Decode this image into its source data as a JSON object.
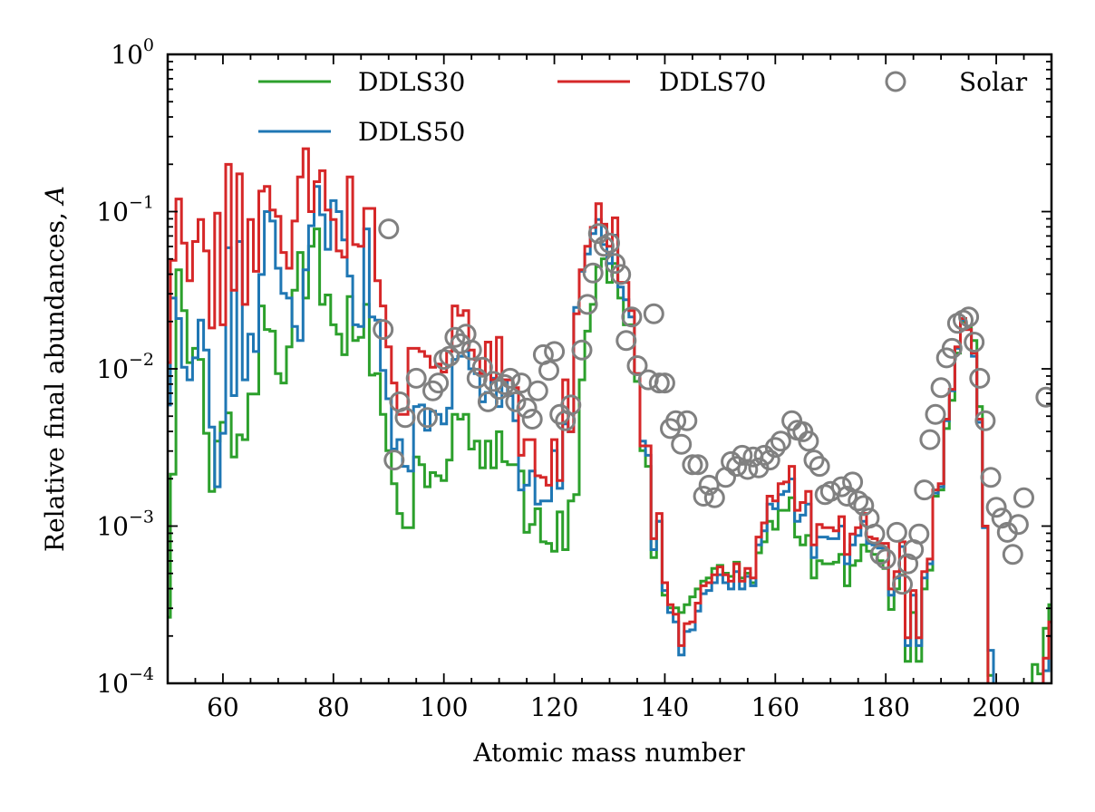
{
  "chart_data": {
    "type": "line",
    "style": "step",
    "xlabel": "Atomic mass number",
    "ylabel": "Relative final abundances, ",
    "ylabel_symbol": "A",
    "xlim": [
      50,
      210
    ],
    "ylim": [
      0.0001,
      1
    ],
    "yscale": "log",
    "value_encoding": "log10 of relative final abundance per mass number; -5 means below plotted range",
    "xticks": [
      60,
      80,
      100,
      120,
      140,
      160,
      180,
      200
    ],
    "xticklabels": [
      "60",
      "80",
      "100",
      "120",
      "140",
      "160",
      "180",
      "200"
    ],
    "ytick_base": "10",
    "ytick_exponents": [
      "0",
      "−1",
      "−2",
      "−3",
      "−4"
    ],
    "ytick_values": [
      1,
      0.1,
      0.01,
      0.001,
      0.0001
    ],
    "grid": false,
    "legend_placement": "top",
    "x_start": 50,
    "series": [
      {
        "name": "DDLS30",
        "color": "#2ca02c",
        "kind": "step",
        "log10_values": [
          -3.58,
          -2.67,
          -1.37,
          -1.63,
          -1.96,
          -1.87,
          -1.94,
          -2.41,
          -2.78,
          -2.46,
          -2.34,
          -2.28,
          -2.56,
          -2.42,
          -2.45,
          -2.16,
          -2.16,
          -1.6,
          -1.75,
          -1.76,
          -2.03,
          -2.09,
          -1.86,
          -1.5,
          -1.26,
          -1.55,
          -1.22,
          -1.11,
          -1.59,
          -1.53,
          -1.72,
          -1.78,
          -1.91,
          -1.54,
          -1.82,
          -1.8,
          -1.59,
          -2.04,
          -2.03,
          -2.29,
          -2.52,
          -2.73,
          -2.92,
          -3.01,
          -3.01,
          -2.56,
          -2.61,
          -2.75,
          -2.66,
          -2.68,
          -2.71,
          -2.58,
          -2.29,
          -2.32,
          -2.29,
          -2.51,
          -2.46,
          -2.63,
          -2.46,
          -2.63,
          -2.4,
          -2.59,
          -2.61,
          -2.61,
          -2.65,
          -3.04,
          -2.99,
          -2.89,
          -3.1,
          -3.11,
          -3.16,
          -2.91,
          -3.15,
          -2.84,
          -2.8,
          -2.07,
          -1.76,
          -1.59,
          -1.35,
          -1.3,
          -1.45,
          -1.33,
          -1.55,
          -1.72,
          -1.72,
          -2.08,
          -2.52,
          -2.62,
          -3.2,
          -2.97,
          -3.44,
          -3.52,
          -3.52,
          -3.55,
          -3.5,
          -3.45,
          -3.4,
          -3.35,
          -3.33,
          -3.27,
          -3.25,
          -3.3,
          -3.32,
          -3.23,
          -3.33,
          -3.3,
          -3.36,
          -3.17,
          -3.1,
          -2.97,
          -3.02,
          -2.9,
          -2.9,
          -2.82,
          -3.07,
          -3.12,
          -3.06,
          -3.33,
          -3.22,
          -3.24,
          -3.24,
          -3.23,
          -3.18,
          -3.38,
          -3.25,
          -3.22,
          -3.12,
          -3.16,
          -3.18,
          -3.22,
          -3.27,
          -3.53,
          -3.4,
          -3.31,
          -3.86,
          -3.55,
          -3.86,
          -3.4,
          -3.28,
          -2.81,
          -2.77,
          -2.38,
          -2.2,
          -1.9,
          -1.7,
          -1.74,
          -1.82,
          -2.24,
          -3.0,
          -3.95,
          -5,
          -5,
          -5,
          -5,
          -5,
          -5,
          -5,
          -3.88,
          -3.94,
          -3.65,
          -3.5
        ]
      },
      {
        "name": "DDLS50",
        "color": "#1f77b4",
        "kind": "step",
        "log10_values": [
          -2.23,
          -1.55,
          -1.68,
          -1.99,
          -2.07,
          -1.93,
          -1.69,
          -1.88,
          -2.37,
          -2.75,
          -2.41,
          -1.23,
          -2.17,
          -1.19,
          -2.07,
          -1.78,
          -1.89,
          -1.4,
          -1.0,
          -1.06,
          -1.36,
          -1.52,
          -1.55,
          -1.73,
          -1.82,
          -1.37,
          -1.09,
          -0.84,
          -1.02,
          -1.24,
          -0.93,
          -1.0,
          -1.18,
          -1.41,
          -1.72,
          -1.73,
          -1.11,
          -1.67,
          -1.69,
          -2.01,
          -2.19,
          -2.51,
          -2.45,
          -2.62,
          -2.65,
          -2.24,
          -2.23,
          -2.39,
          -2.27,
          -2.29,
          -2.35,
          -2.25,
          -1.94,
          -1.92,
          -1.89,
          -2.0,
          -2.03,
          -2.21,
          -2.15,
          -2.06,
          -2.24,
          -2.07,
          -2.17,
          -2.33,
          -2.77,
          -2.74,
          -2.65,
          -2.86,
          -2.84,
          -2.84,
          -2.52,
          -2.76,
          -2.35,
          -2.4,
          -1.61,
          -1.38,
          -1.27,
          -1.14,
          -1.05,
          -1.21,
          -1.33,
          -1.15,
          -1.48,
          -1.56,
          -1.67,
          -2.03,
          -2.46,
          -2.55,
          -3.15,
          -2.97,
          -3.41,
          -3.55,
          -3.61,
          -3.82,
          -3.67,
          -3.66,
          -3.54,
          -3.43,
          -3.41,
          -3.36,
          -3.31,
          -3.36,
          -3.4,
          -3.29,
          -3.4,
          -3.32,
          -3.38,
          -3.12,
          -3.03,
          -2.86,
          -2.89,
          -2.8,
          -2.78,
          -2.7,
          -2.97,
          -2.93,
          -2.86,
          -3.2,
          -3.07,
          -3.07,
          -3.08,
          -3.08,
          -3.0,
          -3.24,
          -3.12,
          -3.06,
          -2.97,
          -3.11,
          -3.12,
          -3.14,
          -3.14,
          -3.44,
          -3.33,
          -3.13,
          -3.76,
          -3.44,
          -3.76,
          -3.33,
          -3.24,
          -2.79,
          -2.75,
          -2.33,
          -2.14,
          -1.87,
          -1.69,
          -1.75,
          -1.92,
          -2.34,
          -3.01,
          -3.79,
          -5,
          -5,
          -5,
          -5,
          -5,
          -5,
          -5,
          -5,
          -5,
          -3.92,
          -3.7
        ]
      },
      {
        "name": "DDLS70",
        "color": "#d62728",
        "kind": "step",
        "log10_values": [
          -1.96,
          -1.31,
          -0.92,
          -1.2,
          -1.44,
          -1.19,
          -1.05,
          -1.25,
          -1.74,
          -1.01,
          -1.72,
          -0.7,
          -1.5,
          -0.76,
          -1.59,
          -1.05,
          -1.38,
          -0.87,
          -0.84,
          -0.99,
          -1.03,
          -1.26,
          -1.36,
          -1.06,
          -0.78,
          -0.6,
          -1.0,
          -0.81,
          -0.74,
          -0.99,
          -1.05,
          -1.25,
          -1.29,
          -0.78,
          -1.21,
          -1.22,
          -0.98,
          -0.98,
          -1.44,
          -1.6,
          -1.86,
          -2.09,
          -2.29,
          -2.29,
          -1.87,
          -1.87,
          -1.89,
          -1.92,
          -1.99,
          -1.97,
          -2.02,
          -1.89,
          -1.6,
          -1.66,
          -1.63,
          -1.88,
          -1.94,
          -2.03,
          -1.83,
          -2.07,
          -1.8,
          -2.07,
          -2.07,
          -2.12,
          -2.55,
          -2.45,
          -2.45,
          -2.68,
          -2.69,
          -2.74,
          -2.45,
          -2.71,
          -2.07,
          -2.4,
          -1.65,
          -1.37,
          -1.22,
          -1.1,
          -0.95,
          -1.08,
          -1.22,
          -1.04,
          -1.45,
          -1.45,
          -1.63,
          -2.03,
          -2.49,
          -2.49,
          -3.08,
          -2.92,
          -3.36,
          -3.5,
          -3.56,
          -3.76,
          -3.62,
          -3.61,
          -3.49,
          -3.38,
          -3.36,
          -3.31,
          -3.26,
          -3.31,
          -3.35,
          -3.24,
          -3.35,
          -3.27,
          -3.33,
          -3.07,
          -2.98,
          -2.81,
          -2.84,
          -2.73,
          -2.72,
          -2.62,
          -2.9,
          -2.85,
          -2.78,
          -3.12,
          -2.99,
          -3.01,
          -3.01,
          -3.03,
          -2.94,
          -3.18,
          -3.05,
          -3.01,
          -2.92,
          -3.07,
          -3.08,
          -3.11,
          -3.11,
          -3.4,
          -3.29,
          -3.1,
          -3.71,
          -3.41,
          -3.71,
          -3.29,
          -3.21,
          -2.77,
          -2.73,
          -2.32,
          -2.13,
          -1.86,
          -1.68,
          -1.75,
          -1.9,
          -2.32,
          -3.0,
          -5,
          -5,
          -5,
          -5,
          -5,
          -5,
          -5,
          -5,
          -5,
          -5,
          -3.84,
          -3.61
        ]
      },
      {
        "name": "Solar",
        "color": "#808080",
        "kind": "scatter",
        "points": [
          [
            89,
            -1.75
          ],
          [
            90,
            -1.11
          ],
          [
            91,
            -2.58
          ],
          [
            92,
            -2.21
          ],
          [
            93,
            -2.31
          ],
          [
            95,
            -2.06
          ],
          [
            97,
            -2.31
          ],
          [
            98,
            -2.14
          ],
          [
            99,
            -2.09
          ],
          [
            100,
            -1.94
          ],
          [
            101,
            -1.92
          ],
          [
            102,
            -1.8
          ],
          [
            103,
            -1.84
          ],
          [
            104,
            -1.78
          ],
          [
            105,
            -1.88
          ],
          [
            106,
            -2.06
          ],
          [
            107,
            -1.99
          ],
          [
            108,
            -2.21
          ],
          [
            109,
            -2.08
          ],
          [
            110,
            -2.13
          ],
          [
            111,
            -2.1
          ],
          [
            112,
            -2.06
          ],
          [
            113,
            -2.21
          ],
          [
            114,
            -2.09
          ],
          [
            115,
            -2.25
          ],
          [
            116,
            -2.32
          ],
          [
            117,
            -2.14
          ],
          [
            118,
            -1.91
          ],
          [
            119,
            -2.01
          ],
          [
            120,
            -1.89
          ],
          [
            121,
            -2.29
          ],
          [
            122,
            -2.33
          ],
          [
            123,
            -2.23
          ],
          [
            125,
            -1.88
          ],
          [
            126,
            -1.59
          ],
          [
            127,
            -1.39
          ],
          [
            128,
            -1.14
          ],
          [
            129,
            -1.22
          ],
          [
            130,
            -1.2
          ],
          [
            131,
            -1.33
          ],
          [
            132,
            -1.4
          ],
          [
            133,
            -1.82
          ],
          [
            134,
            -1.67
          ],
          [
            135,
            -1.98
          ],
          [
            137,
            -2.07
          ],
          [
            138,
            -1.65
          ],
          [
            139,
            -2.09
          ],
          [
            140,
            -2.09
          ],
          [
            141,
            -2.38
          ],
          [
            142,
            -2.33
          ],
          [
            143,
            -2.48
          ],
          [
            144,
            -2.33
          ],
          [
            145,
            -2.61
          ],
          [
            146,
            -2.61
          ],
          [
            147,
            -2.81
          ],
          [
            148,
            -2.74
          ],
          [
            149,
            -2.82
          ],
          [
            151,
            -2.69
          ],
          [
            152,
            -2.59
          ],
          [
            153,
            -2.62
          ],
          [
            154,
            -2.55
          ],
          [
            155,
            -2.64
          ],
          [
            156,
            -2.56
          ],
          [
            157,
            -2.63
          ],
          [
            158,
            -2.55
          ],
          [
            159,
            -2.58
          ],
          [
            160,
            -2.5
          ],
          [
            161,
            -2.46
          ],
          [
            163,
            -2.33
          ],
          [
            164,
            -2.39
          ],
          [
            165,
            -2.4
          ],
          [
            166,
            -2.46
          ],
          [
            167,
            -2.58
          ],
          [
            168,
            -2.62
          ],
          [
            169,
            -2.8
          ],
          [
            170,
            -2.78
          ],
          [
            172,
            -2.75
          ],
          [
            173,
            -2.81
          ],
          [
            174,
            -2.72
          ],
          [
            175,
            -2.84
          ],
          [
            176,
            -2.87
          ],
          [
            177,
            -2.95
          ],
          [
            178,
            -3.05
          ],
          [
            179,
            -3.18
          ],
          [
            180,
            -3.21
          ],
          [
            182,
            -3.04
          ],
          [
            183,
            -3.37
          ],
          [
            184,
            -3.24
          ],
          [
            185,
            -3.15
          ],
          [
            186,
            -3.05
          ],
          [
            187,
            -2.77
          ],
          [
            188,
            -2.45
          ],
          [
            189,
            -2.29
          ],
          [
            190,
            -2.12
          ],
          [
            191,
            -1.93
          ],
          [
            192,
            -1.87
          ],
          [
            193,
            -1.71
          ],
          [
            194,
            -1.69
          ],
          [
            195,
            -1.67
          ],
          [
            196,
            -1.83
          ],
          [
            197,
            -2.06
          ],
          [
            198,
            -2.33
          ],
          [
            199,
            -2.69
          ],
          [
            200,
            -2.88
          ],
          [
            201,
            -2.95
          ],
          [
            202,
            -3.04
          ],
          [
            203,
            -3.18
          ],
          [
            204,
            -2.99
          ],
          [
            205,
            -2.82
          ],
          [
            209,
            -2.18
          ]
        ]
      }
    ],
    "legend": [
      "DDLS30",
      "DDLS70",
      "Solar",
      "DDLS50"
    ]
  }
}
